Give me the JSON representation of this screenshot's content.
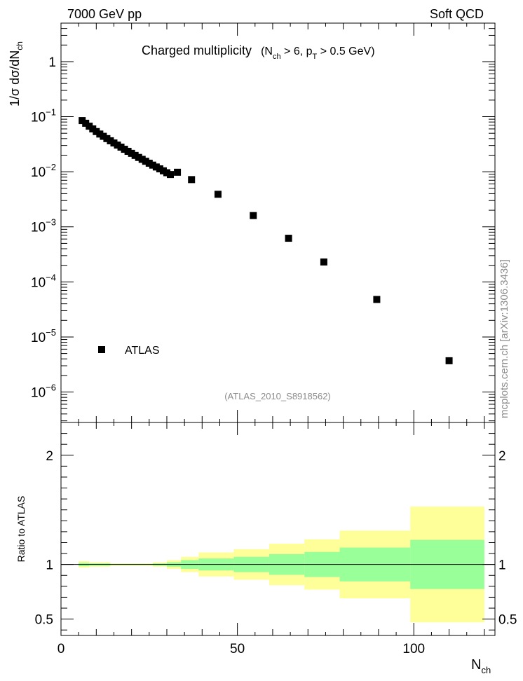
{
  "header": {
    "left": "7000 GeV pp",
    "right": "Soft QCD"
  },
  "side_label": "mcplots.cern.ch [arXiv:1306.3436]",
  "chart_data": [
    {
      "type": "scatter",
      "title_main": "Charged multiplicity",
      "title_sub_open": "(N",
      "title_sub_ch": "ch",
      "title_sub_mid": " > 6, p",
      "title_sub_T": "T",
      "title_sub_end": " > 0.5 GeV)",
      "analysis_id": "(ATLAS_2010_S8918562)",
      "ylabel_main": "1/σ dσ/dN",
      "ylabel_sub": "ch",
      "yscale": "log",
      "xlim": [
        0,
        123
      ],
      "ylim": [
        2.8e-07,
        5
      ],
      "y_major_ticks": [
        {
          "value": 1,
          "mant": "1",
          "exp": ""
        },
        {
          "value": 0.1,
          "mant": "10",
          "exp": "−1"
        },
        {
          "value": 0.01,
          "mant": "10",
          "exp": "−2"
        },
        {
          "value": 0.001,
          "mant": "10",
          "exp": "−3"
        },
        {
          "value": 0.0001,
          "mant": "10",
          "exp": "−4"
        },
        {
          "value": 1e-05,
          "mant": "10",
          "exp": "−5"
        },
        {
          "value": 1e-06,
          "mant": "10",
          "exp": "−6"
        }
      ],
      "legend": {
        "entries": [
          "ATLAS"
        ],
        "placement": "bottom-left"
      },
      "series": [
        {
          "name": "ATLAS",
          "marker": "square",
          "color": "#000000",
          "x": [
            6,
            7,
            8,
            9,
            10,
            11,
            12,
            13,
            14,
            15,
            16,
            17,
            18,
            19,
            20,
            21,
            22,
            23,
            24,
            25,
            26,
            27,
            28,
            29,
            30,
            31,
            33,
            37,
            44.5,
            54.5,
            64.5,
            74.5,
            89.5,
            110
          ],
          "y": [
            0.085,
            0.076,
            0.0672,
            0.06,
            0.0537,
            0.0484,
            0.044,
            0.04,
            0.0365,
            0.0333,
            0.0305,
            0.028,
            0.0256,
            0.0235,
            0.0216,
            0.0198,
            0.0182,
            0.0168,
            0.0155,
            0.0143,
            0.0132,
            0.0122,
            0.0113,
            0.0104,
            0.0096,
            0.0089,
            0.0098,
            0.0072,
            0.0039,
            0.0016,
            0.00062,
            0.00023,
            4.8e-05,
            3.7e-06
          ]
        }
      ]
    },
    {
      "type": "area",
      "ylabel": "Ratio to ATLAS",
      "xlabel_main": "N",
      "xlabel_sub": "ch",
      "xlim": [
        0,
        123
      ],
      "ylim": [
        0.35,
        2.3
      ],
      "x_ticks": [
        0,
        50,
        100
      ],
      "y_ticks": [
        0.5,
        1,
        2
      ],
      "y_tick_labels": [
        "0.5",
        "1",
        "2"
      ],
      "reference_line": 1,
      "bins": [
        {
          "x0": 5,
          "x1": 8,
          "inner": [
            0.985,
            1.015
          ],
          "outer": [
            0.97,
            1.03
          ]
        },
        {
          "x0": 8,
          "x1": 14,
          "inner": [
            0.99,
            1.01
          ],
          "outer": [
            0.98,
            1.02
          ]
        },
        {
          "x0": 14,
          "x1": 20,
          "inner": [
            0.995,
            1.005
          ],
          "outer": [
            0.99,
            1.01
          ]
        },
        {
          "x0": 20,
          "x1": 26,
          "inner": [
            0.995,
            1.005
          ],
          "outer": [
            0.99,
            1.01
          ]
        },
        {
          "x0": 26,
          "x1": 30,
          "inner": [
            0.99,
            1.01
          ],
          "outer": [
            0.98,
            1.02
          ]
        },
        {
          "x0": 30,
          "x1": 34,
          "inner": [
            0.98,
            1.02
          ],
          "outer": [
            0.96,
            1.04
          ]
        },
        {
          "x0": 34,
          "x1": 39,
          "inner": [
            0.96,
            1.04
          ],
          "outer": [
            0.93,
            1.07
          ]
        },
        {
          "x0": 39,
          "x1": 49,
          "inner": [
            0.945,
            1.055
          ],
          "outer": [
            0.89,
            1.11
          ]
        },
        {
          "x0": 49,
          "x1": 59,
          "inner": [
            0.93,
            1.07
          ],
          "outer": [
            0.86,
            1.14
          ]
        },
        {
          "x0": 59,
          "x1": 69,
          "inner": [
            0.905,
            1.095
          ],
          "outer": [
            0.81,
            1.19
          ]
        },
        {
          "x0": 69,
          "x1": 79,
          "inner": [
            0.885,
            1.115
          ],
          "outer": [
            0.77,
            1.23
          ]
        },
        {
          "x0": 79,
          "x1": 99,
          "inner": [
            0.845,
            1.155
          ],
          "outer": [
            0.69,
            1.31
          ]
        },
        {
          "x0": 99,
          "x1": 120,
          "inner": [
            0.775,
            1.225
          ],
          "outer": [
            0.47,
            1.53
          ]
        }
      ],
      "band_colors": {
        "inner": "#99ff99",
        "outer": "#ffff99"
      }
    }
  ]
}
